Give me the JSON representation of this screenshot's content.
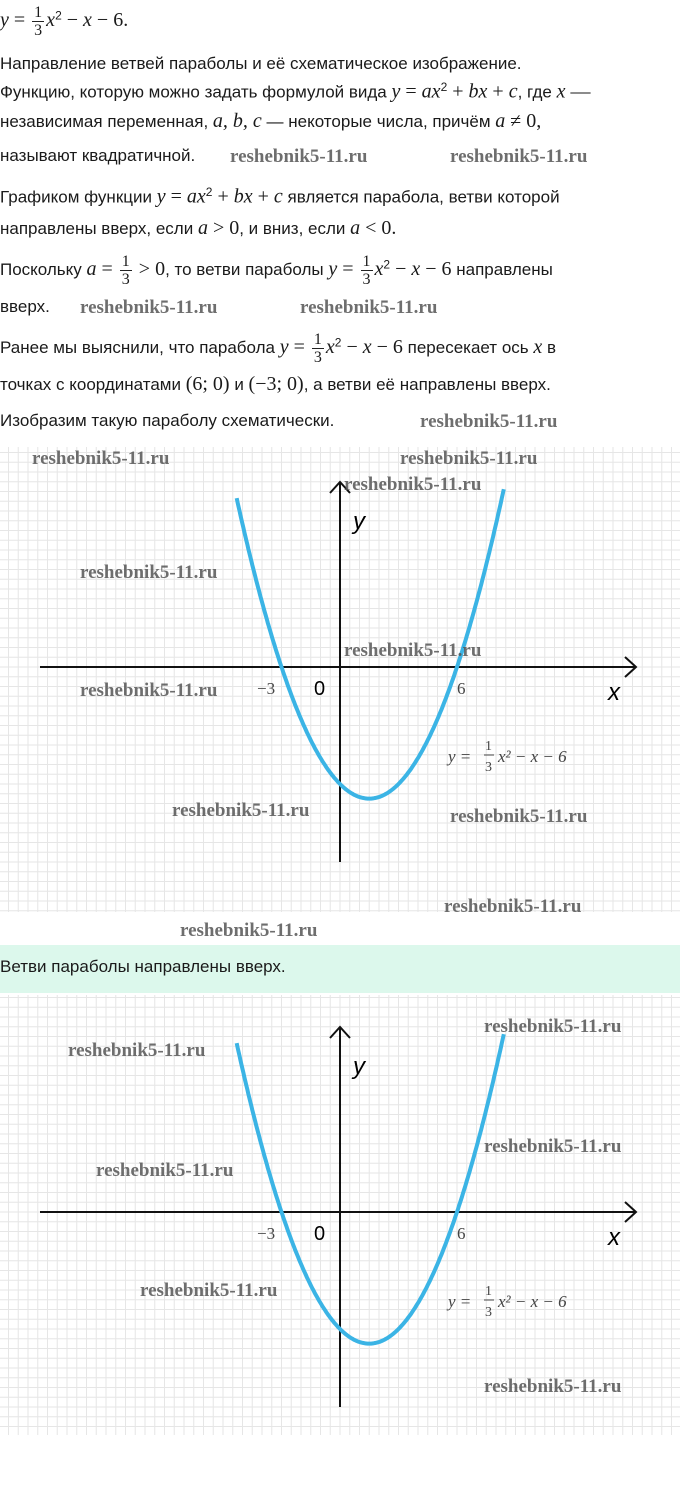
{
  "lines": [
    [
      {
        "t": "m",
        "v": "y"
      },
      {
        "t": "mr",
        "v": " = "
      },
      {
        "t": "frac",
        "n": "1",
        "d": "3"
      },
      {
        "t": "m",
        "v": "x"
      },
      {
        "t": "sup",
        "v": "2"
      },
      {
        "t": "mr",
        "v": " − "
      },
      {
        "t": "m",
        "v": "x"
      },
      {
        "t": "mr",
        "v": " − 6."
      }
    ],
    [
      {
        "t": "text",
        "v": "Направление ветвей параболы и её схематическое изображение."
      }
    ],
    [
      {
        "t": "text",
        "v": "Функцию, которую можно задать формулой вида "
      },
      {
        "t": "m",
        "v": "y"
      },
      {
        "t": "mr",
        "v": " = "
      },
      {
        "t": "m",
        "v": "ax"
      },
      {
        "t": "sup",
        "v": "2"
      },
      {
        "t": "mr",
        "v": " + "
      },
      {
        "t": "m",
        "v": "bx"
      },
      {
        "t": "mr",
        "v": " + "
      },
      {
        "t": "m",
        "v": "c"
      },
      {
        "t": "text",
        "v": ", где "
      },
      {
        "t": "m",
        "v": "x"
      },
      {
        "t": "mr",
        "v": " —"
      }
    ],
    [
      {
        "t": "text",
        "v": "независимая переменная, "
      },
      {
        "t": "m",
        "v": "a,  b,  c"
      },
      {
        "t": "text",
        "v": " — некоторые числа, причём "
      },
      {
        "t": "m",
        "v": "a"
      },
      {
        "t": "mr",
        "v": " ≠ 0,"
      }
    ],
    [
      {
        "t": "text",
        "v": "называют квадратичной."
      }
    ],
    [
      {
        "t": "text",
        "v": "Графиком функции "
      },
      {
        "t": "m",
        "v": "y"
      },
      {
        "t": "mr",
        "v": " = "
      },
      {
        "t": "m",
        "v": "ax"
      },
      {
        "t": "sup",
        "v": "2"
      },
      {
        "t": "mr",
        "v": " + "
      },
      {
        "t": "m",
        "v": "bx"
      },
      {
        "t": "mr",
        "v": " + "
      },
      {
        "t": "m",
        "v": "c"
      },
      {
        "t": "text",
        "v": " является парабола, ветви которой"
      }
    ],
    [
      {
        "t": "text",
        "v": "направлены вверх, если "
      },
      {
        "t": "m",
        "v": "a"
      },
      {
        "t": "mr",
        "v": "  >  0"
      },
      {
        "t": "text",
        "v": ", и вниз, если "
      },
      {
        "t": "m",
        "v": "a"
      },
      {
        "t": "mr",
        "v": "  <  0."
      }
    ],
    [
      {
        "t": "text",
        "v": "Поскольку "
      },
      {
        "t": "m",
        "v": "a"
      },
      {
        "t": "mr",
        "v": " = "
      },
      {
        "t": "frac",
        "n": "1",
        "d": "3"
      },
      {
        "t": "mr",
        "v": "  >  0"
      },
      {
        "t": "text",
        "v": ", то ветви параболы "
      },
      {
        "t": "m",
        "v": "y"
      },
      {
        "t": "mr",
        "v": " = "
      },
      {
        "t": "frac",
        "n": "1",
        "d": "3"
      },
      {
        "t": "m",
        "v": "x"
      },
      {
        "t": "sup",
        "v": "2"
      },
      {
        "t": "mr",
        "v": " − "
      },
      {
        "t": "m",
        "v": "x"
      },
      {
        "t": "mr",
        "v": " − 6"
      },
      {
        "t": "text",
        "v": " направлены"
      }
    ],
    [
      {
        "t": "text",
        "v": "вверх."
      }
    ],
    [
      {
        "t": "text",
        "v": "Ранее мы выяснили, что парабола "
      },
      {
        "t": "m",
        "v": "y"
      },
      {
        "t": "mr",
        "v": " = "
      },
      {
        "t": "frac",
        "n": "1",
        "d": "3"
      },
      {
        "t": "m",
        "v": "x"
      },
      {
        "t": "sup",
        "v": "2"
      },
      {
        "t": "mr",
        "v": " − "
      },
      {
        "t": "m",
        "v": "x"
      },
      {
        "t": "mr",
        "v": " − 6"
      },
      {
        "t": "text",
        "v": " пересекает ось "
      },
      {
        "t": "m",
        "v": "x"
      },
      {
        "t": "text",
        "v": " в"
      }
    ],
    [
      {
        "t": "text",
        "v": "точках с координатами "
      },
      {
        "t": "mr",
        "v": "(6;  0)"
      },
      {
        "t": "text",
        "v": " и "
      },
      {
        "t": "mr",
        "v": "(−3;  0)"
      },
      {
        "t": "text",
        "v": ", а ветви её направлены вверх."
      }
    ],
    [
      {
        "t": "text",
        "v": "Изобразим такую параболу схематически."
      }
    ]
  ],
  "graph": {
    "function": {
      "a": 0.3333,
      "b": -1,
      "c": -6
    },
    "roots": [
      -3,
      6
    ],
    "x_range": [
      -5.3,
      8.4
    ],
    "axis_x_label": "x",
    "axis_y_label": "y",
    "origin_label": "0",
    "tick_labels": [
      "−3",
      "6"
    ],
    "formula": {
      "lhs": "y = ",
      "num": "1",
      "den": "3",
      "rhs": "x² − x − 6"
    },
    "curve_color": "#3bb4e5"
  },
  "answer": "Ветви параболы направлены вверх.",
  "answer_bg": "#dcf8ec",
  "watermark": "reshebnik5-11.ru"
}
